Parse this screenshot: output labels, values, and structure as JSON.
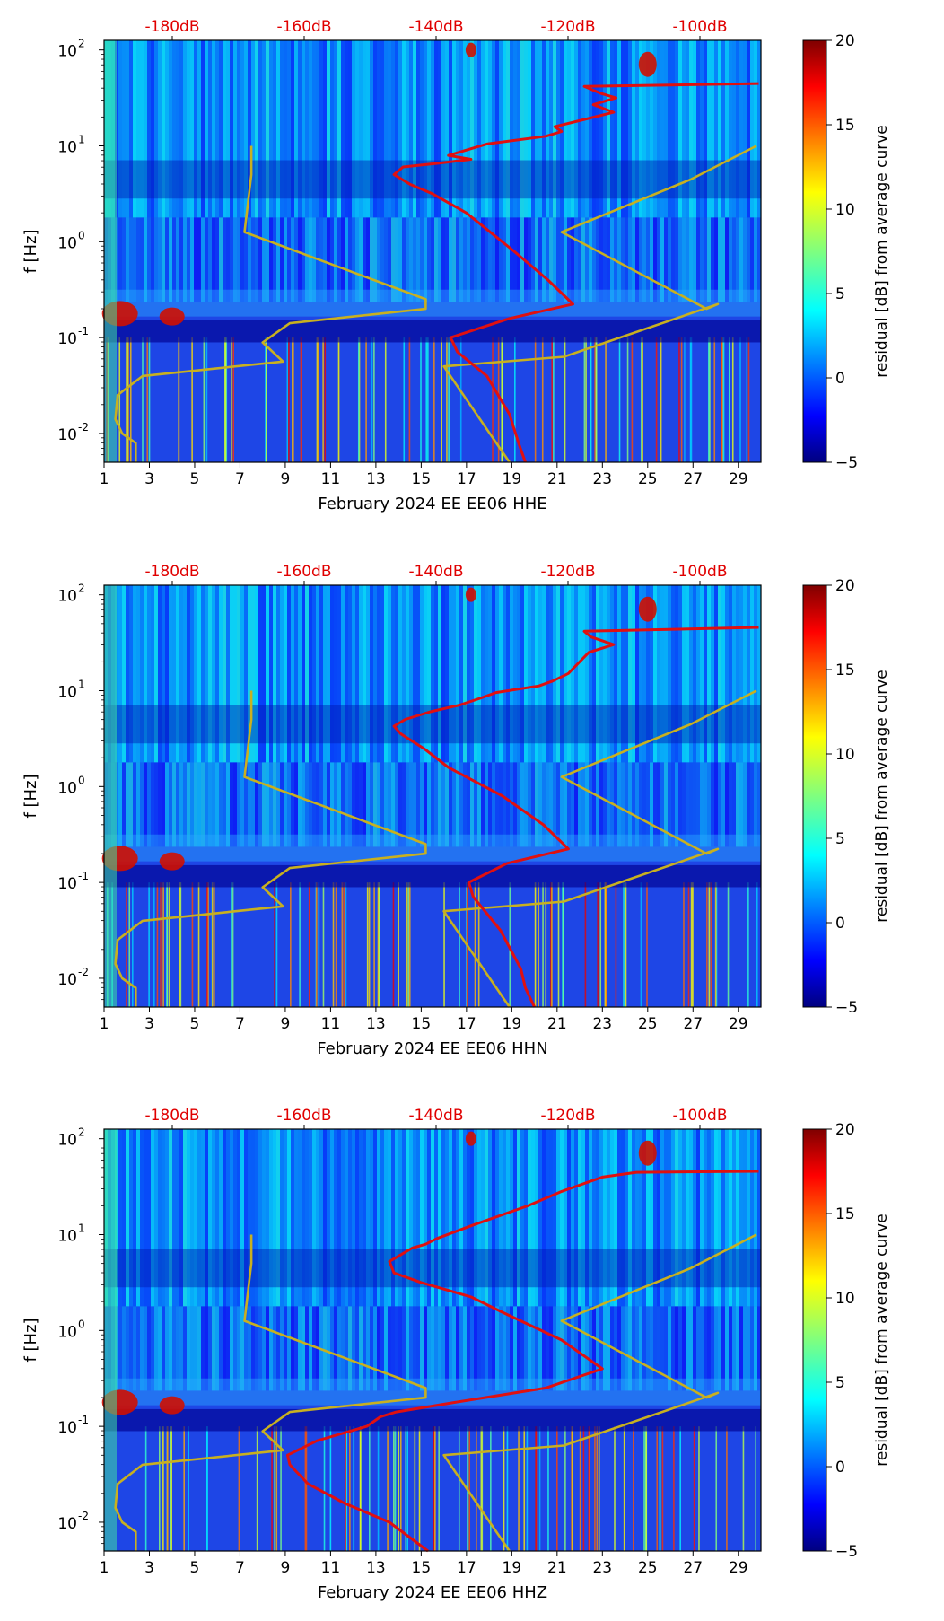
{
  "chart_data": [
    {
      "type": "heatmap",
      "panel": "HHE",
      "xlabel": "February 2024 EE EE06  HHE",
      "ylabel": "f [Hz]",
      "xlim": [
        1,
        30
      ],
      "ylim_log10": [
        -2.3,
        2.1
      ],
      "x_ticks": [
        "1",
        "3",
        "5",
        "7",
        "9",
        "11",
        "13",
        "15",
        "17",
        "19",
        "21",
        "23",
        "25",
        "27",
        "29"
      ],
      "y_ticks": [
        {
          "base": "10",
          "exp": "-2"
        },
        {
          "base": "10",
          "exp": "-1"
        },
        {
          "base": "10",
          "exp": "0"
        },
        {
          "base": "10",
          "exp": "1"
        },
        {
          "base": "10",
          "exp": "2"
        }
      ],
      "top_ticks": [
        "-180dB",
        "-160dB",
        "-140dB",
        "-120dB",
        "-100dB"
      ],
      "colorbar": {
        "label": "residual [dB] from average curve",
        "min": -5,
        "max": 20,
        "ticks": [
          "20",
          "15",
          "10",
          "5",
          "0",
          "−5"
        ]
      },
      "low_noise_model": {
        "color": "#c8b020",
        "day": [
          2.4,
          2.4,
          1.8,
          1.5,
          1.6,
          2.7,
          8.9,
          8,
          9.2,
          15.2,
          15.2,
          7.2,
          7.5,
          7.5
        ],
        "log10_f": [
          -2.3,
          -2.1,
          -2.0,
          -1.85,
          -1.6,
          -1.4,
          -1.25,
          -1.05,
          -0.85,
          -0.7,
          -0.6,
          0.1,
          0.7,
          1.0
        ]
      },
      "high_noise_model": {
        "color": "#c8b020",
        "day": [
          18.9,
          16,
          21.3,
          28.1,
          27.6,
          21.2,
          26.9,
          29.8
        ],
        "log10_f": [
          -2.3,
          -1.3,
          -1.2,
          -0.65,
          -0.7,
          0.1,
          0.65,
          1.0
        ]
      },
      "noise_curve": {
        "color": "#e01010",
        "day": [
          19.6,
          19.3,
          18.9,
          17.9,
          16.6,
          16.3,
          18.9,
          21.7,
          20.6,
          19.1,
          17,
          15.5,
          14.5,
          13.8,
          14.2,
          15.8,
          17.2,
          16.2,
          17.9,
          20.5,
          21.2,
          20.9,
          23.5,
          22.6,
          23.6,
          22.9,
          22.2,
          29.9
        ],
        "log10_f": [
          -2.3,
          -2.1,
          -1.8,
          -1.4,
          -1.15,
          -1.0,
          -0.8,
          -0.65,
          -0.4,
          -0.1,
          0.3,
          0.5,
          0.6,
          0.7,
          0.78,
          0.82,
          0.86,
          0.9,
          1.02,
          1.1,
          1.15,
          1.2,
          1.35,
          1.43,
          1.5,
          1.55,
          1.62,
          1.65
        ]
      }
    },
    {
      "type": "heatmap",
      "panel": "HHN",
      "xlabel": "February 2024 EE EE06  HHN",
      "ylabel": "f [Hz]",
      "xlim": [
        1,
        30
      ],
      "ylim_log10": [
        -2.3,
        2.1
      ],
      "x_ticks": [
        "1",
        "3",
        "5",
        "7",
        "9",
        "11",
        "13",
        "15",
        "17",
        "19",
        "21",
        "23",
        "25",
        "27",
        "29"
      ],
      "y_ticks": [
        {
          "base": "10",
          "exp": "-2"
        },
        {
          "base": "10",
          "exp": "-1"
        },
        {
          "base": "10",
          "exp": "0"
        },
        {
          "base": "10",
          "exp": "1"
        },
        {
          "base": "10",
          "exp": "2"
        }
      ],
      "top_ticks": [
        "-180dB",
        "-160dB",
        "-140dB",
        "-120dB",
        "-100dB"
      ],
      "colorbar": {
        "label": "residual [dB] from average curve",
        "min": -5,
        "max": 20,
        "ticks": [
          "20",
          "15",
          "10",
          "5",
          "0",
          "−5"
        ]
      },
      "low_noise_model": {
        "color": "#c8b020",
        "day": [
          2.4,
          2.4,
          1.8,
          1.5,
          1.6,
          2.7,
          8.9,
          8,
          9.2,
          15.2,
          15.2,
          7.2,
          7.5,
          7.5
        ],
        "log10_f": [
          -2.3,
          -2.1,
          -2.0,
          -1.85,
          -1.6,
          -1.4,
          -1.25,
          -1.05,
          -0.85,
          -0.7,
          -0.6,
          0.1,
          0.7,
          1.0
        ]
      },
      "high_noise_model": {
        "color": "#c8b020",
        "day": [
          18.9,
          16,
          21.3,
          28.1,
          27.6,
          21.2,
          26.9,
          29.8
        ],
        "log10_f": [
          -2.3,
          -1.3,
          -1.2,
          -0.65,
          -0.7,
          0.1,
          0.65,
          1.0
        ]
      },
      "noise_curve": {
        "color": "#e01010",
        "day": [
          20,
          19.6,
          19.4,
          18.5,
          17.3,
          17.1,
          18.8,
          21.5,
          20.4,
          18.6,
          16.2,
          15.1,
          14.1,
          13.8,
          14.3,
          15.4,
          16.7,
          17.6,
          18.3,
          20.2,
          20.8,
          21.5,
          22.4,
          23.5,
          22.5,
          22.2,
          29.9
        ],
        "log10_f": [
          -2.3,
          -2.1,
          -1.9,
          -1.5,
          -1.15,
          -1.0,
          -0.8,
          -0.65,
          -0.4,
          -0.1,
          0.2,
          0.4,
          0.55,
          0.63,
          0.7,
          0.78,
          0.85,
          0.92,
          0.98,
          1.05,
          1.1,
          1.18,
          1.4,
          1.48,
          1.56,
          1.62,
          1.66
        ]
      }
    },
    {
      "type": "heatmap",
      "panel": "HHZ",
      "xlabel": "February 2024 EE EE06  HHZ",
      "ylabel": "f [Hz]",
      "xlim": [
        1,
        30
      ],
      "ylim_log10": [
        -2.3,
        2.1
      ],
      "x_ticks": [
        "1",
        "3",
        "5",
        "7",
        "9",
        "11",
        "13",
        "15",
        "17",
        "19",
        "21",
        "23",
        "25",
        "27",
        "29"
      ],
      "y_ticks": [
        {
          "base": "10",
          "exp": "-2"
        },
        {
          "base": "10",
          "exp": "-1"
        },
        {
          "base": "10",
          "exp": "0"
        },
        {
          "base": "10",
          "exp": "1"
        },
        {
          "base": "10",
          "exp": "2"
        }
      ],
      "top_ticks": [
        "-180dB",
        "-160dB",
        "-140dB",
        "-120dB",
        "-100dB"
      ],
      "colorbar": {
        "label": "residual [dB] from average curve",
        "min": -5,
        "max": 20,
        "ticks": [
          "20",
          "15",
          "10",
          "5",
          "0",
          "−5"
        ]
      },
      "low_noise_model": {
        "color": "#c8b020",
        "day": [
          2.4,
          2.4,
          1.8,
          1.5,
          1.6,
          2.7,
          8.9,
          8,
          9.2,
          15.2,
          15.2,
          7.2,
          7.5,
          7.5
        ],
        "log10_f": [
          -2.3,
          -2.1,
          -2.0,
          -1.85,
          -1.6,
          -1.4,
          -1.25,
          -1.05,
          -0.85,
          -0.7,
          -0.6,
          0.1,
          0.7,
          1.0
        ]
      },
      "high_noise_model": {
        "color": "#c8b020",
        "day": [
          18.9,
          16,
          21.3,
          28.1,
          27.6,
          21.2,
          26.9,
          29.8
        ],
        "log10_f": [
          -2.3,
          -1.3,
          -1.2,
          -0.65,
          -0.7,
          0.1,
          0.65,
          1.0
        ]
      },
      "noise_curve": {
        "color": "#e01010",
        "day": [
          15.3,
          13.6,
          11.6,
          10,
          9.2,
          9.1,
          10.4,
          12.6,
          13.2,
          13.9,
          16.5,
          20.5,
          23,
          21.2,
          18.5,
          17.2,
          15,
          13.8,
          13.6,
          14.6,
          15.2,
          15.7,
          17.3,
          19.7,
          21.2,
          23,
          24.5,
          29.9
        ],
        "log10_f": [
          -2.3,
          -2.0,
          -1.8,
          -1.6,
          -1.4,
          -1.3,
          -1.15,
          -1.0,
          -0.9,
          -0.85,
          -0.75,
          -0.6,
          -0.4,
          -0.1,
          0.2,
          0.35,
          0.5,
          0.6,
          0.72,
          0.86,
          0.9,
          0.96,
          1.1,
          1.3,
          1.45,
          1.6,
          1.65,
          1.66
        ]
      }
    }
  ]
}
